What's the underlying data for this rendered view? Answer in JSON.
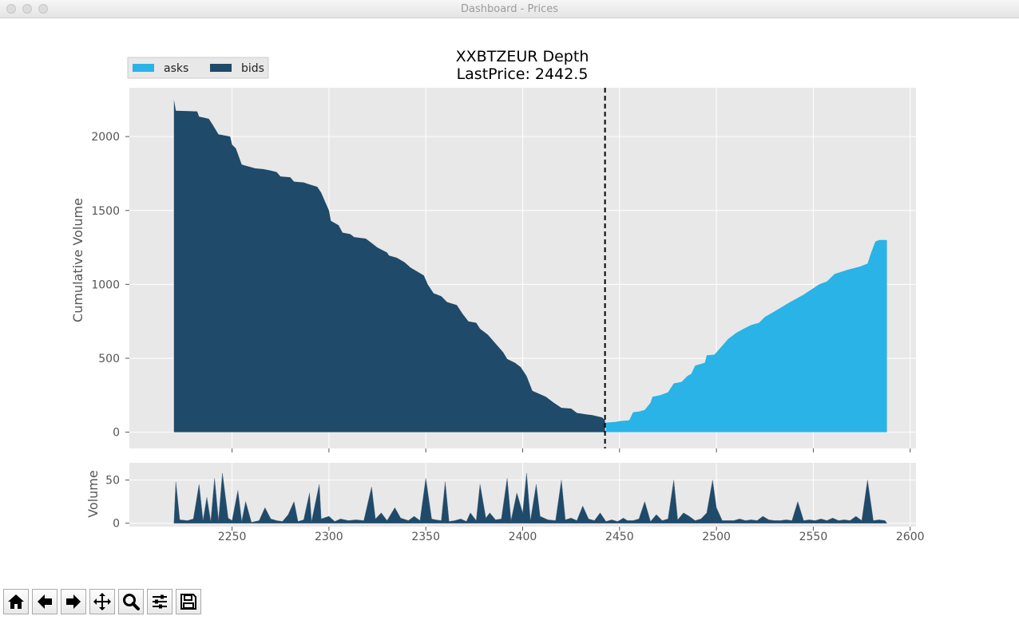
{
  "window": {
    "title": "Dashboard - Prices",
    "buttons": [
      "close",
      "minimize",
      "zoom"
    ]
  },
  "toolbar": {
    "buttons": [
      {
        "name": "home-button",
        "icon": "home-icon"
      },
      {
        "name": "back-button",
        "icon": "arrow-left-icon"
      },
      {
        "name": "forward-button",
        "icon": "arrow-right-icon"
      },
      {
        "name": "pan-button",
        "icon": "move-icon"
      },
      {
        "name": "zoom-button",
        "icon": "magnifier-icon"
      },
      {
        "name": "configure-subplots-button",
        "icon": "sliders-icon"
      },
      {
        "name": "save-button",
        "icon": "floppy-disk-icon"
      }
    ]
  },
  "chart_data": [
    {
      "type": "area",
      "title": "XXBTZEUR Depth",
      "subtitle": "LastPrice: 2442.5",
      "xlabel": "",
      "ylabel": "Cumulative Volume",
      "xlim": [
        2197,
        2603
      ],
      "ylim": [
        -110,
        2330
      ],
      "yticks": [
        0,
        500,
        1000,
        1500,
        2000
      ],
      "xticks": [
        2250,
        2300,
        2350,
        2400,
        2450,
        2500,
        2550,
        2600
      ],
      "show_xticklabels": false,
      "grid": true,
      "legend": {
        "position": "top-left",
        "entries": [
          "asks",
          "bids"
        ]
      },
      "last_price": 2442.5,
      "colors": {
        "asks": "#29b3e7",
        "bids": "#1f4a69",
        "background": "#e8e8e8",
        "vline": "#000000"
      },
      "series": [
        {
          "name": "bids",
          "points": [
            [
              2220,
              0
            ],
            [
              2220,
              2250
            ],
            [
              2221,
              2175
            ],
            [
              2232,
              2170
            ],
            [
              2233,
              2135
            ],
            [
              2238,
              2120
            ],
            [
              2240,
              2080
            ],
            [
              2243,
              2015
            ],
            [
              2245,
              2010
            ],
            [
              2249,
              2000
            ],
            [
              2250,
              1945
            ],
            [
              2252,
              1920
            ],
            [
              2255,
              1810
            ],
            [
              2262,
              1785
            ],
            [
              2266,
              1780
            ],
            [
              2270,
              1770
            ],
            [
              2273,
              1760
            ],
            [
              2275,
              1730
            ],
            [
              2280,
              1725
            ],
            [
              2282,
              1695
            ],
            [
              2287,
              1690
            ],
            [
              2289,
              1680
            ],
            [
              2294,
              1660
            ],
            [
              2296,
              1620
            ],
            [
              2300,
              1500
            ],
            [
              2301,
              1430
            ],
            [
              2305,
              1400
            ],
            [
              2307,
              1350
            ],
            [
              2311,
              1340
            ],
            [
              2313,
              1320
            ],
            [
              2319,
              1310
            ],
            [
              2322,
              1280
            ],
            [
              2325,
              1250
            ],
            [
              2330,
              1215
            ],
            [
              2331,
              1195
            ],
            [
              2335,
              1180
            ],
            [
              2339,
              1150
            ],
            [
              2342,
              1115
            ],
            [
              2349,
              1060
            ],
            [
              2351,
              1000
            ],
            [
              2354,
              940
            ],
            [
              2358,
              920
            ],
            [
              2361,
              880
            ],
            [
              2366,
              860
            ],
            [
              2369,
              800
            ],
            [
              2372,
              750
            ],
            [
              2376,
              740
            ],
            [
              2378,
              700
            ],
            [
              2382,
              660
            ],
            [
              2386,
              600
            ],
            [
              2390,
              540
            ],
            [
              2392,
              495
            ],
            [
              2396,
              470
            ],
            [
              2399,
              440
            ],
            [
              2402,
              380
            ],
            [
              2405,
              280
            ],
            [
              2412,
              240
            ],
            [
              2416,
              200
            ],
            [
              2420,
              165
            ],
            [
              2425,
              160
            ],
            [
              2428,
              130
            ],
            [
              2433,
              120
            ],
            [
              2436,
              115
            ],
            [
              2441,
              100
            ],
            [
              2442.5,
              80
            ],
            [
              2442.5,
              0
            ]
          ]
        },
        {
          "name": "asks",
          "points": [
            [
              2443,
              0
            ],
            [
              2443,
              65
            ],
            [
              2448,
              70
            ],
            [
              2450,
              75
            ],
            [
              2455,
              80
            ],
            [
              2457,
              135
            ],
            [
              2460,
              140
            ],
            [
              2463,
              150
            ],
            [
              2466,
              200
            ],
            [
              2467,
              240
            ],
            [
              2471,
              250
            ],
            [
              2475,
              270
            ],
            [
              2478,
              330
            ],
            [
              2482,
              340
            ],
            [
              2485,
              380
            ],
            [
              2487,
              395
            ],
            [
              2489,
              450
            ],
            [
              2494,
              470
            ],
            [
              2495,
              520
            ],
            [
              2499,
              525
            ],
            [
              2504,
              600
            ],
            [
              2506,
              630
            ],
            [
              2510,
              670
            ],
            [
              2514,
              700
            ],
            [
              2518,
              725
            ],
            [
              2522,
              740
            ],
            [
              2525,
              780
            ],
            [
              2529,
              810
            ],
            [
              2538,
              880
            ],
            [
              2545,
              930
            ],
            [
              2553,
              1000
            ],
            [
              2557,
              1020
            ],
            [
              2561,
              1070
            ],
            [
              2568,
              1100
            ],
            [
              2574,
              1120
            ],
            [
              2578,
              1140
            ],
            [
              2580,
              1220
            ],
            [
              2582,
              1290
            ],
            [
              2584,
              1300
            ],
            [
              2588,
              1300
            ],
            [
              2588,
              0
            ]
          ]
        }
      ]
    },
    {
      "type": "area",
      "title": "",
      "xlabel": "",
      "ylabel": "Volume",
      "xlim": [
        2197,
        2603
      ],
      "ylim": [
        -4,
        70
      ],
      "yticks": [
        0,
        50
      ],
      "xticks": [
        2250,
        2300,
        2350,
        2400,
        2450,
        2500,
        2550,
        2600
      ],
      "xticklabels": [
        "2250",
        "2300",
        "2350",
        "2400",
        "2450",
        "2500",
        "2550",
        "2600"
      ],
      "grid": true,
      "colors": {
        "bids": "#1f4a69",
        "asks": "#1f4a69"
      },
      "series": [
        {
          "name": "",
          "points": [
            [
              2220,
              0
            ],
            [
              2221,
              48
            ],
            [
              2223,
              4
            ],
            [
              2227,
              3
            ],
            [
              2230,
              5
            ],
            [
              2233,
              45
            ],
            [
              2235,
              3
            ],
            [
              2237,
              30
            ],
            [
              2239,
              2
            ],
            [
              2241,
              52
            ],
            [
              2243,
              3
            ],
            [
              2245,
              58
            ],
            [
              2248,
              6
            ],
            [
              2250,
              3
            ],
            [
              2253,
              38
            ],
            [
              2255,
              2
            ],
            [
              2257,
              25
            ],
            [
              2260,
              1
            ],
            [
              2264,
              3
            ],
            [
              2267,
              18
            ],
            [
              2270,
              5
            ],
            [
              2273,
              3
            ],
            [
              2276,
              2
            ],
            [
              2279,
              10
            ],
            [
              2282,
              25
            ],
            [
              2284,
              2
            ],
            [
              2287,
              4
            ],
            [
              2290,
              35
            ],
            [
              2291,
              2
            ],
            [
              2295,
              45
            ],
            [
              2296,
              5
            ],
            [
              2300,
              8
            ],
            [
              2303,
              2
            ],
            [
              2306,
              5
            ],
            [
              2310,
              3
            ],
            [
              2314,
              4
            ],
            [
              2318,
              3
            ],
            [
              2322,
              42
            ],
            [
              2324,
              5
            ],
            [
              2327,
              12
            ],
            [
              2330,
              3
            ],
            [
              2334,
              18
            ],
            [
              2337,
              6
            ],
            [
              2341,
              3
            ],
            [
              2344,
              8
            ],
            [
              2347,
              3
            ],
            [
              2350,
              52
            ],
            [
              2353,
              5
            ],
            [
              2355,
              4
            ],
            [
              2358,
              3
            ],
            [
              2360,
              48
            ],
            [
              2362,
              2
            ],
            [
              2365,
              3
            ],
            [
              2368,
              5
            ],
            [
              2371,
              2
            ],
            [
              2373,
              12
            ],
            [
              2376,
              3
            ],
            [
              2378,
              45
            ],
            [
              2381,
              6
            ],
            [
              2383,
              12
            ],
            [
              2386,
              4
            ],
            [
              2389,
              5
            ],
            [
              2392,
              52
            ],
            [
              2394,
              3
            ],
            [
              2397,
              35
            ],
            [
              2400,
              12
            ],
            [
              2402,
              58
            ],
            [
              2404,
              3
            ],
            [
              2407,
              45
            ],
            [
              2409,
              8
            ],
            [
              2413,
              4
            ],
            [
              2417,
              3
            ],
            [
              2420,
              50
            ],
            [
              2422,
              4
            ],
            [
              2425,
              6
            ],
            [
              2428,
              3
            ],
            [
              2431,
              20
            ],
            [
              2434,
              5
            ],
            [
              2437,
              3
            ],
            [
              2440,
              12
            ],
            [
              2443,
              2
            ],
            [
              2446,
              4
            ],
            [
              2449,
              2
            ],
            [
              2452,
              6
            ],
            [
              2454,
              3
            ],
            [
              2457,
              3
            ],
            [
              2460,
              5
            ],
            [
              2463,
              25
            ],
            [
              2466,
              2
            ],
            [
              2469,
              10
            ],
            [
              2472,
              3
            ],
            [
              2475,
              5
            ],
            [
              2478,
              50
            ],
            [
              2480,
              4
            ],
            [
              2483,
              12
            ],
            [
              2486,
              8
            ],
            [
              2489,
              3
            ],
            [
              2492,
              5
            ],
            [
              2495,
              12
            ],
            [
              2498,
              50
            ],
            [
              2500,
              18
            ],
            [
              2503,
              3
            ],
            [
              2506,
              3
            ],
            [
              2509,
              3
            ],
            [
              2512,
              5
            ],
            [
              2515,
              3
            ],
            [
              2518,
              4
            ],
            [
              2521,
              3
            ],
            [
              2524,
              8
            ],
            [
              2527,
              4
            ],
            [
              2530,
              3
            ],
            [
              2533,
              3
            ],
            [
              2536,
              4
            ],
            [
              2539,
              3
            ],
            [
              2542,
              25
            ],
            [
              2545,
              3
            ],
            [
              2548,
              4
            ],
            [
              2551,
              3
            ],
            [
              2554,
              5
            ],
            [
              2557,
              3
            ],
            [
              2560,
              6
            ],
            [
              2563,
              3
            ],
            [
              2566,
              4
            ],
            [
              2569,
              3
            ],
            [
              2572,
              8
            ],
            [
              2575,
              3
            ],
            [
              2578,
              50
            ],
            [
              2581,
              3
            ],
            [
              2584,
              4
            ],
            [
              2587,
              3
            ],
            [
              2588,
              0
            ]
          ]
        }
      ]
    }
  ]
}
